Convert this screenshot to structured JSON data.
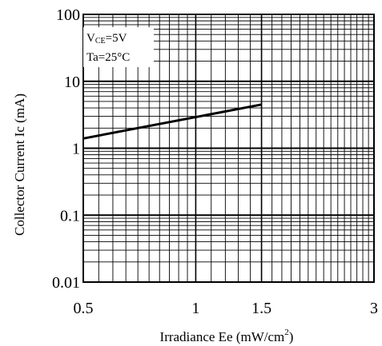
{
  "chart_data": {
    "type": "line",
    "title": "",
    "xlabel": "Irradiance Ee (mW/cm",
    "xlabel_sup": "2",
    "xlabel_close": ")",
    "ylabel": "Collector Current Ic (mA)",
    "x_scale": "log",
    "y_scale": "log",
    "xlim": [
      0.5,
      3
    ],
    "ylim": [
      0.01,
      100
    ],
    "x_ticks": [
      {
        "value": 0.5,
        "label": "0.5"
      },
      {
        "value": 1,
        "label": "1"
      },
      {
        "value": 1.5,
        "label": "1.5"
      },
      {
        "value": 3,
        "label": "3"
      }
    ],
    "y_ticks": [
      {
        "value": 0.01,
        "label": "0.01"
      },
      {
        "value": 0.1,
        "label": "0.1"
      },
      {
        "value": 1,
        "label": "1"
      },
      {
        "value": 10,
        "label": "10"
      },
      {
        "value": 100,
        "label": "100"
      }
    ],
    "grid": true,
    "annotations": [
      {
        "text_main": "V",
        "text_sub": "CE",
        "text_rest": "=5V"
      },
      {
        "text_main": "Ta=25",
        "text_sub": "",
        "text_rest": "°C"
      }
    ],
    "series": [
      {
        "x": [
          0.5,
          1.5
        ],
        "y": [
          1.4,
          4.5
        ]
      }
    ]
  }
}
